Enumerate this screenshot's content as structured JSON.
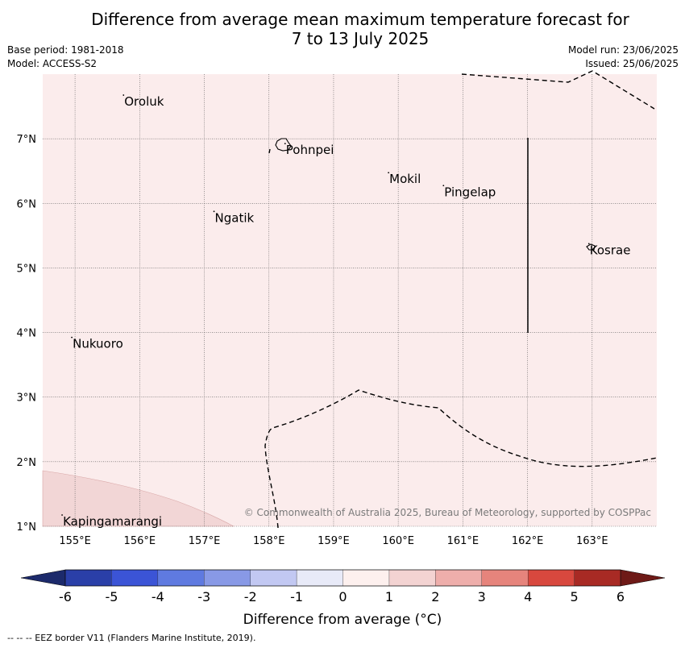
{
  "title_line1": "Difference from average mean maximum temperature forecast for",
  "title_line2": "7 to 13 July 2025",
  "base_period": "Base period: 1981-2018",
  "model": "Model: ACCESS-S2",
  "model_run": "Model run: 23/06/2025",
  "issued": "Issued: 25/06/2025",
  "copyright": "© Commonwealth of Australia 2025, Bureau of Meteorology, supported by COSPPac",
  "footer_note": "--  --  -- EEZ border V11 (Flanders Marine Institute, 2019).",
  "map": {
    "lon_range": [
      154.5,
      164.0
    ],
    "lat_range": [
      1.0,
      8.0
    ],
    "lon_ticks": [
      "155°E",
      "156°E",
      "157°E",
      "158°E",
      "159°E",
      "160°E",
      "161°E",
      "162°E",
      "163°E"
    ],
    "lat_ticks": [
      "1°N",
      "2°N",
      "3°N",
      "4°N",
      "5°N",
      "6°N",
      "7°N"
    ],
    "places": [
      {
        "name": "Oroluk",
        "lon": 155.75,
        "lat": 7.6
      },
      {
        "name": "Pohnpei",
        "lon": 158.25,
        "lat": 6.85
      },
      {
        "name": "Mokil",
        "lon": 159.85,
        "lat": 6.4
      },
      {
        "name": "Pingelap",
        "lon": 160.7,
        "lat": 6.2
      },
      {
        "name": "Ngatik",
        "lon": 157.15,
        "lat": 5.8
      },
      {
        "name": "Kosrae",
        "lon": 162.95,
        "lat": 5.3
      },
      {
        "name": "Nukuoro",
        "lon": 154.95,
        "lat": 3.85
      },
      {
        "name": "Kapingamarangi",
        "lon": 154.8,
        "lat": 1.1
      }
    ],
    "background_anomaly_range": "0 to 1",
    "sw_anomaly_range": "1 to 2",
    "colors": {
      "bg_anomaly": "#fbecec",
      "sw_anomaly": "#f2d6d6"
    }
  },
  "colorbar": {
    "label": "Difference from average (°C)",
    "ticks": [
      "-6",
      "-5",
      "-4",
      "-3",
      "-2",
      "-1",
      "0",
      "1",
      "2",
      "3",
      "4",
      "5",
      "6"
    ],
    "colors": [
      "#2a3fa8",
      "#3b54d6",
      "#5f7ae0",
      "#8899e6",
      "#c2c8f2",
      "#e8eaf8",
      "#fdf0ee",
      "#f3d3d2",
      "#eeaeab",
      "#e6847c",
      "#d8483e",
      "#a82a24"
    ],
    "low_extend_color": "#1c2a6b",
    "high_extend_color": "#6e1a17"
  }
}
